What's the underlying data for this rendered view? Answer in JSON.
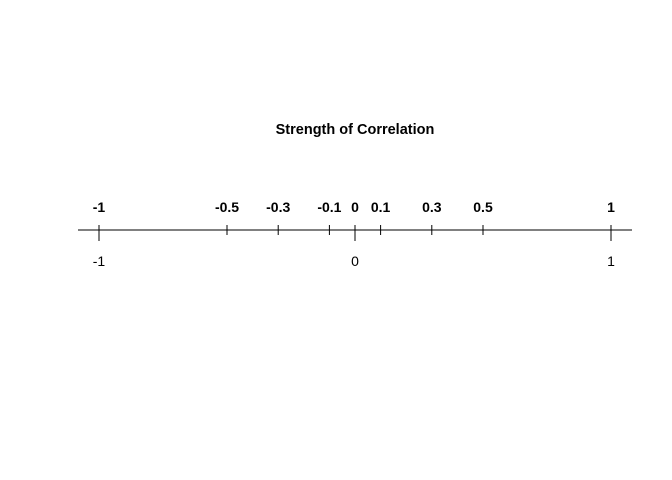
{
  "chart_data": {
    "type": "number-line",
    "title": "Strength of Correlation",
    "xlim": [
      -1,
      1
    ],
    "xlabel": "",
    "ylabel": "",
    "grid": false,
    "marked_values": [
      -1,
      -0.5,
      -0.3,
      -0.1,
      0,
      0.1,
      0.3,
      0.5,
      1
    ],
    "marked_labels": [
      "-1",
      "-0.5",
      "-0.3",
      "-0.1",
      "0",
      "0.1",
      "0.3",
      "0.5",
      "1"
    ],
    "axis_ticks": [
      -1,
      0,
      1
    ],
    "axis_tick_labels": [
      "-1",
      "0",
      "1"
    ]
  }
}
